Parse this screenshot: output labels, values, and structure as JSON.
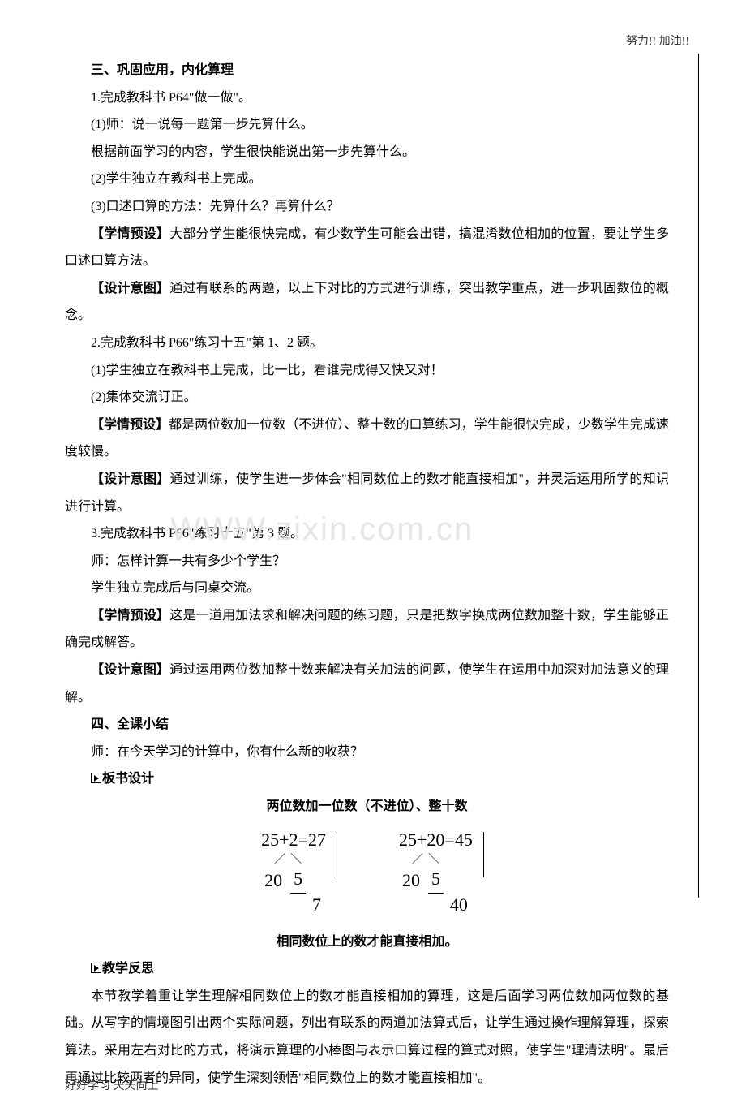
{
  "header": "努力!! 加油!!",
  "footer": "好好学习 天天向上",
  "watermark": "WWW.zixin.com.cn",
  "section3": {
    "title": "三、巩固应用，内化算理",
    "p1": "1.完成教科书 P64\"做一做\"。",
    "p1a": "(1)师：说一说每一题第一步先算什么。",
    "p1b": "根据前面学习的内容，学生很快能说出第一步先算什么。",
    "p1c": "(2)学生独立在教科书上完成。",
    "p1d": "(3)口述口算的方法：先算什么？再算什么？",
    "note1_label": "【学情预设】",
    "note1": "大部分学生能很快完成，有少数学生可能会出错，搞混淆数位相加的位置，要让学生多口述口算方法。",
    "note2_label": "【设计意图】",
    "note2": "通过有联系的两题，以上下对比的方式进行训练，突出教学重点，进一步巩固数位的概念。",
    "p2": "2.完成教科书 P66\"练习十五\"第 1、2 题。",
    "p2a": "(1)学生独立在教科书上完成，比一比，看谁完成得又快又对！",
    "p2b": "(2)集体交流订正。",
    "note3_label": "【学情预设】",
    "note3": "都是两位数加一位数（不进位）、整十数的口算练习，学生能很快完成，少数学生完成速度较慢。",
    "note4_label": "【设计意图】",
    "note4": "通过训练，使学生进一步体会\"相同数位上的数才能直接相加\"，并灵活运用所学的知识进行计算。",
    "p3": "3.完成教科书 P66\"练习十五\"第 3 题。",
    "p3a": "师：怎样计算一共有多少个学生？",
    "p3b": "学生独立完成后与同桌交流。",
    "note5_label": "【学情预设】",
    "note5": "这是一道用加法求和解决问题的练习题，只是把数字换成两位数加整十数，学生能够正确完成解答。",
    "note6_label": "【设计意图】",
    "note6": "通过运用两位数加整十数来解决有关加法的问题，使学生在运用中加深对加法意义的理解。"
  },
  "section4": {
    "title": "四、全课小结",
    "p1": "师：在今天学习的计算中，你有什么新的收获？",
    "board_label": "板书设计",
    "board_title": "两位数加一位数（不进位）、整十数",
    "rule": "相同数位上的数才能直接相加。",
    "reflect_label": "教学反思",
    "reflect": "本节教学着重让学生理解相同数位上的数才能直接相加的算理，这是后面学习两位数加两位数的基础。从写字的情境图引出两个实际问题，列出有联系的两道加法算式后，让学生通过操作理解算理，探索算法。采用左右对比的方式，将演示算理的小棒图与表示口算过程的算式对照，使学生\"理清法明\"。最后再通过比较两者的异同，使学生深刻领悟\"相同数位上的数才能直接相加\"。"
  },
  "math": {
    "left": {
      "eq": "25+2=27",
      "a": "20",
      "b": "5",
      "r": "7"
    },
    "right": {
      "eq": "25+20=45",
      "a": "20",
      "b": "5",
      "r": "40"
    }
  },
  "colors": {
    "text": "#000000",
    "bg": "#ffffff",
    "watermark": "#e6e6e6"
  }
}
